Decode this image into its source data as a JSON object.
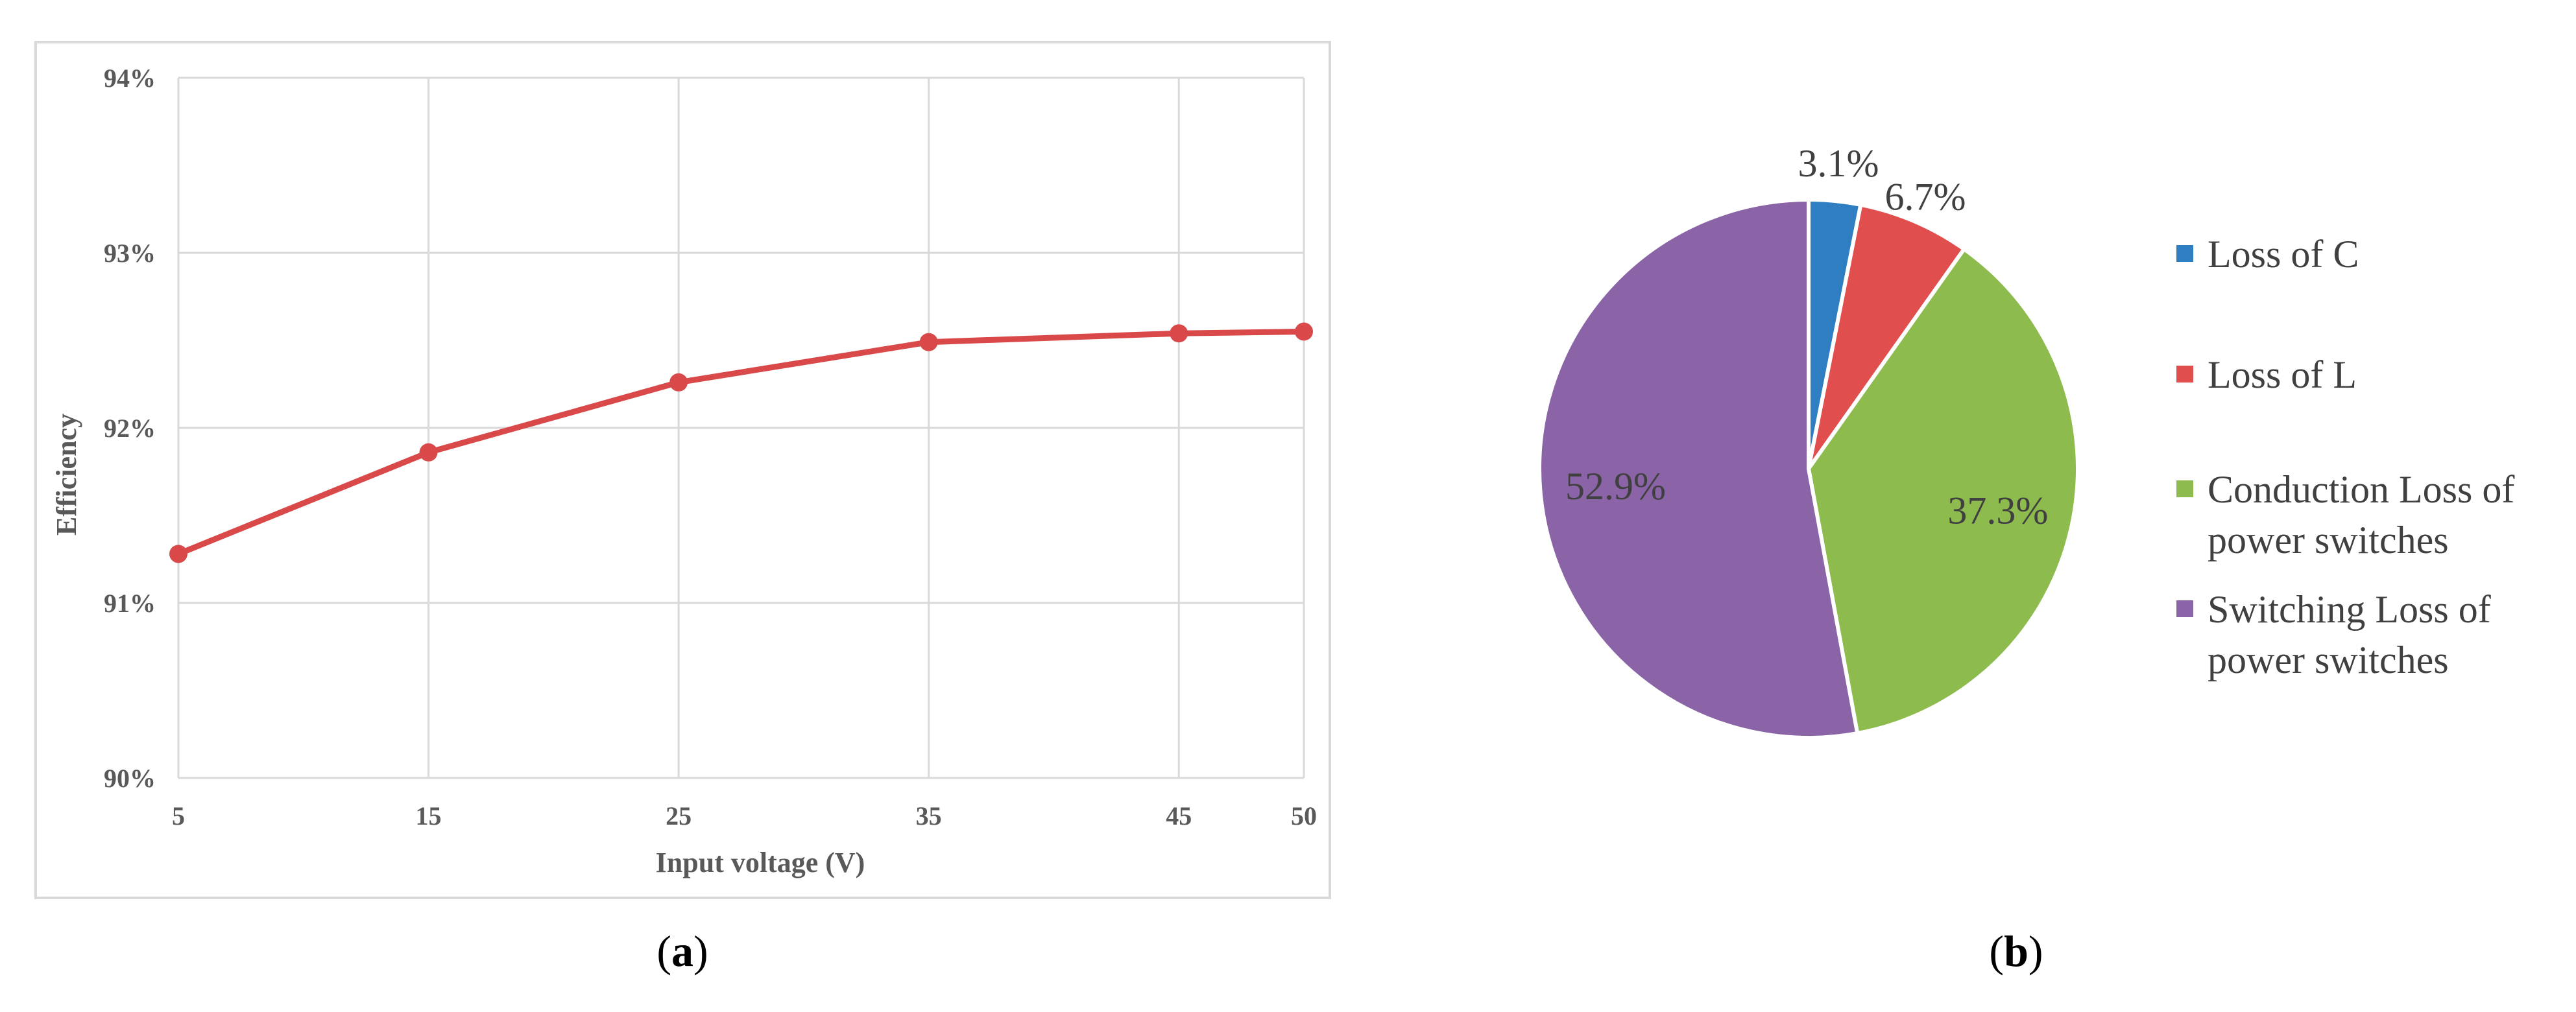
{
  "chart_data": [
    {
      "type": "line",
      "panel_label": {
        "open": "(",
        "letter": "a",
        "close": ")"
      },
      "xlabel": "Input voltage (V)",
      "ylabel": "Efficiency",
      "categories": [
        "5",
        "15",
        "25",
        "35",
        "45",
        "50"
      ],
      "values": [
        0.9128,
        0.9186,
        0.9226,
        0.9249,
        0.9254,
        0.9255
      ],
      "ylim": [
        0.9,
        0.94
      ],
      "yticks": [
        "90%",
        "91%",
        "92%",
        "93%",
        "94%"
      ],
      "grid": true,
      "colors": {
        "line": "#D9494A",
        "grid": "#D9D9D9",
        "border": "#D9D9D9"
      }
    },
    {
      "type": "pie",
      "panel_label": {
        "open": "(",
        "letter": "b",
        "close": ")"
      },
      "slices": [
        {
          "label": "Loss of C",
          "value": 3.1,
          "display": "3.1%",
          "color": "#2E7EC1"
        },
        {
          "label": "Loss of L",
          "value": 6.7,
          "display": "6.7%",
          "color": "#E04E4E"
        },
        {
          "label": "Conduction Loss of power switches",
          "label_lines": [
            "Conduction Loss of",
            "power switches"
          ],
          "value": 37.3,
          "display": "37.3%",
          "color": "#8DBB4E"
        },
        {
          "label": "Switching Loss of power switches",
          "label_lines": [
            "Switching Loss of",
            "power switches"
          ],
          "value": 52.9,
          "display": "52.9%",
          "color": "#8A64A6"
        }
      ],
      "legend": "right"
    }
  ]
}
